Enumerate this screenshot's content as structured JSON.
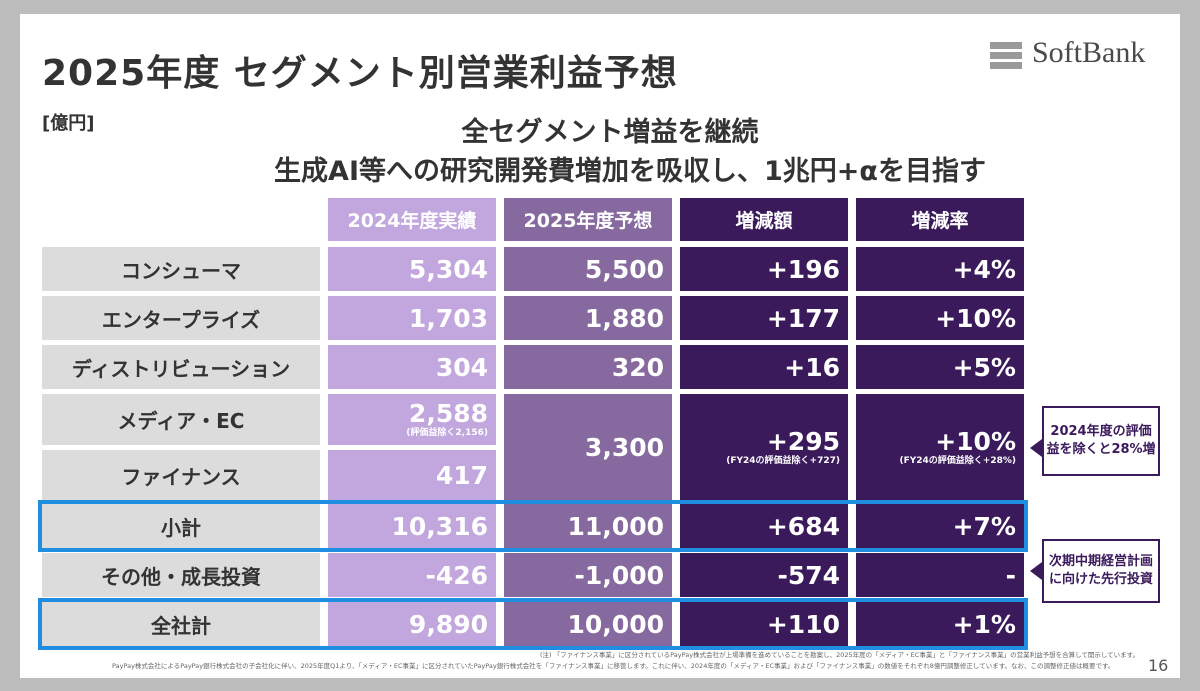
{
  "title": "2025年度 セグメント別営業利益予想",
  "unit": "[億円]",
  "logo_text": "SoftBank",
  "subtitle1": "全セグメント増益を継続",
  "subtitle2": "生成AI等への研究開発費増加を吸収し、1兆円+αを目指す",
  "headers": [
    "2024年度実績",
    "2025年度予想",
    "増減額",
    "増減率"
  ],
  "rows": {
    "consumer": {
      "label": "コンシューマ",
      "fy24": "5,304",
      "fy25": "5,500",
      "diff": "+196",
      "rate": "+4%"
    },
    "enterprise": {
      "label": "エンタープライズ",
      "fy24": "1,703",
      "fy25": "1,880",
      "diff": "+177",
      "rate": "+10%"
    },
    "distribution": {
      "label": "ディストリビューション",
      "fy24": "304",
      "fy25": "320",
      "diff": "+16",
      "rate": "+5%"
    },
    "media": {
      "label": "メディア・EC",
      "fy24": "2,588",
      "fy24_note": "(評価益除く2,156)"
    },
    "finance": {
      "label": "ファイナンス",
      "fy24": "417"
    },
    "media_finance": {
      "fy25": "3,300",
      "diff": "+295",
      "diff_note": "(FY24の評価益除く+727)",
      "rate": "+10%",
      "rate_note": "(FY24の評価益除く+28%)"
    },
    "subtotal": {
      "label": "小計",
      "fy24": "10,316",
      "fy25": "11,000",
      "diff": "+684",
      "rate": "+7%"
    },
    "other": {
      "label": "その他・成長投資",
      "fy24": "-426",
      "fy25": "-1,000",
      "diff": "-574",
      "rate": "-"
    },
    "total": {
      "label": "全社計",
      "fy24": "9,890",
      "fy25": "10,000",
      "diff": "+110",
      "rate": "+1%"
    }
  },
  "callout1": "2024年度の評価益を除くと28%増",
  "callout2": "次期中期経営計画に向けた先行投資",
  "footnote1": "(注) 「ファイナンス事業」に区分されているPayPay株式会社が上場準備を進めていることを勘案し、2025年度の「メディア・EC事業」と「ファイナンス事業」の営業利益予想を合算して開示しています。",
  "footnote2": "PayPay株式会社によるPayPay銀行株式会社の子会社化に伴い、2025年度Q1より、「メディア・EC事業」に区分されていたPayPay銀行株式会社を「ファイナンス事業」に移管します。これに伴い、2024年度の「メディア・EC事業」および「ファイナンス事業」の数値をそれぞれ8億円調整修正しています。なお、この調整修正値は概要です。",
  "page_number": "16",
  "colors": {
    "fy24": "#c2a6de",
    "fy25": "#866a9f",
    "diff": "#3b1a5c",
    "highlight": "#1f8de0",
    "label_bg": "#dcdcdc"
  }
}
